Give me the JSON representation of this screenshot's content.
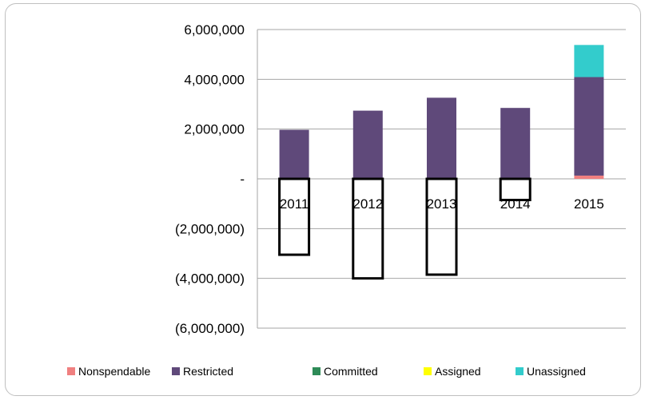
{
  "chart_data": {
    "type": "bar",
    "stacked": true,
    "title": "",
    "categories": [
      "2011",
      "2012",
      "2013",
      "2014",
      "2015"
    ],
    "series": [
      {
        "name": "Nonspendable",
        "color": "#f08080",
        "values": [
          30000,
          30000,
          30000,
          30000,
          130000
        ]
      },
      {
        "name": "Restricted",
        "color": "#5f497a",
        "values": [
          1940000,
          2710000,
          3230000,
          2820000,
          3960000
        ]
      },
      {
        "name": "Committed",
        "color": "#2e8b57",
        "values": [
          0,
          0,
          0,
          0,
          0
        ]
      },
      {
        "name": "Assigned",
        "color": "#ffff00",
        "values": [
          0,
          0,
          0,
          0,
          0
        ]
      },
      {
        "name": "Unassigned",
        "color": "#33cccc",
        "values": [
          -3050000,
          -4000000,
          -3850000,
          -850000,
          1290000
        ]
      }
    ],
    "ylim": [
      -6000000,
      6000000
    ],
    "yticks": [
      6000000,
      4000000,
      2000000,
      0,
      -2000000,
      -4000000,
      -6000000
    ],
    "ytick_labels": [
      "6,000,000",
      "4,000,000",
      "2,000,000",
      "-",
      "(2,000,000)",
      "(4,000,000)",
      "(6,000,000)"
    ],
    "grid": true,
    "legend_position": "bottom"
  }
}
